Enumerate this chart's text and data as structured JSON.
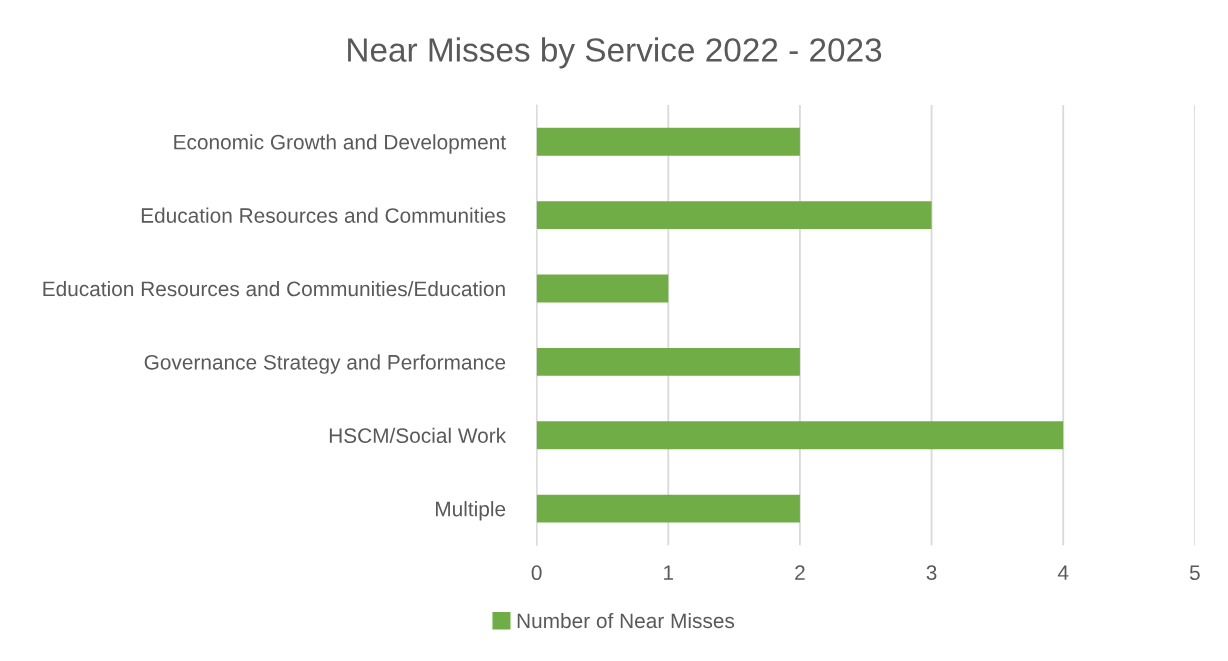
{
  "chart_data": {
    "type": "bar",
    "orientation": "horizontal",
    "title": "Near Misses by Service 2022 - 2023",
    "categories": [
      "Economic Growth and Development",
      "Education Resources and Communities",
      "Education Resources and Communities/Education",
      "Governance Strategy and Performance",
      "HSCM/Social Work",
      "Multiple"
    ],
    "series": [
      {
        "name": "Number of Near Misses",
        "color": "#70ad47",
        "values": [
          2,
          3,
          1,
          2,
          4,
          2
        ]
      }
    ],
    "xlim": [
      0,
      5
    ],
    "xticks": [
      0,
      1,
      2,
      3,
      4,
      5
    ],
    "grid": "x",
    "legend": "bottom"
  }
}
